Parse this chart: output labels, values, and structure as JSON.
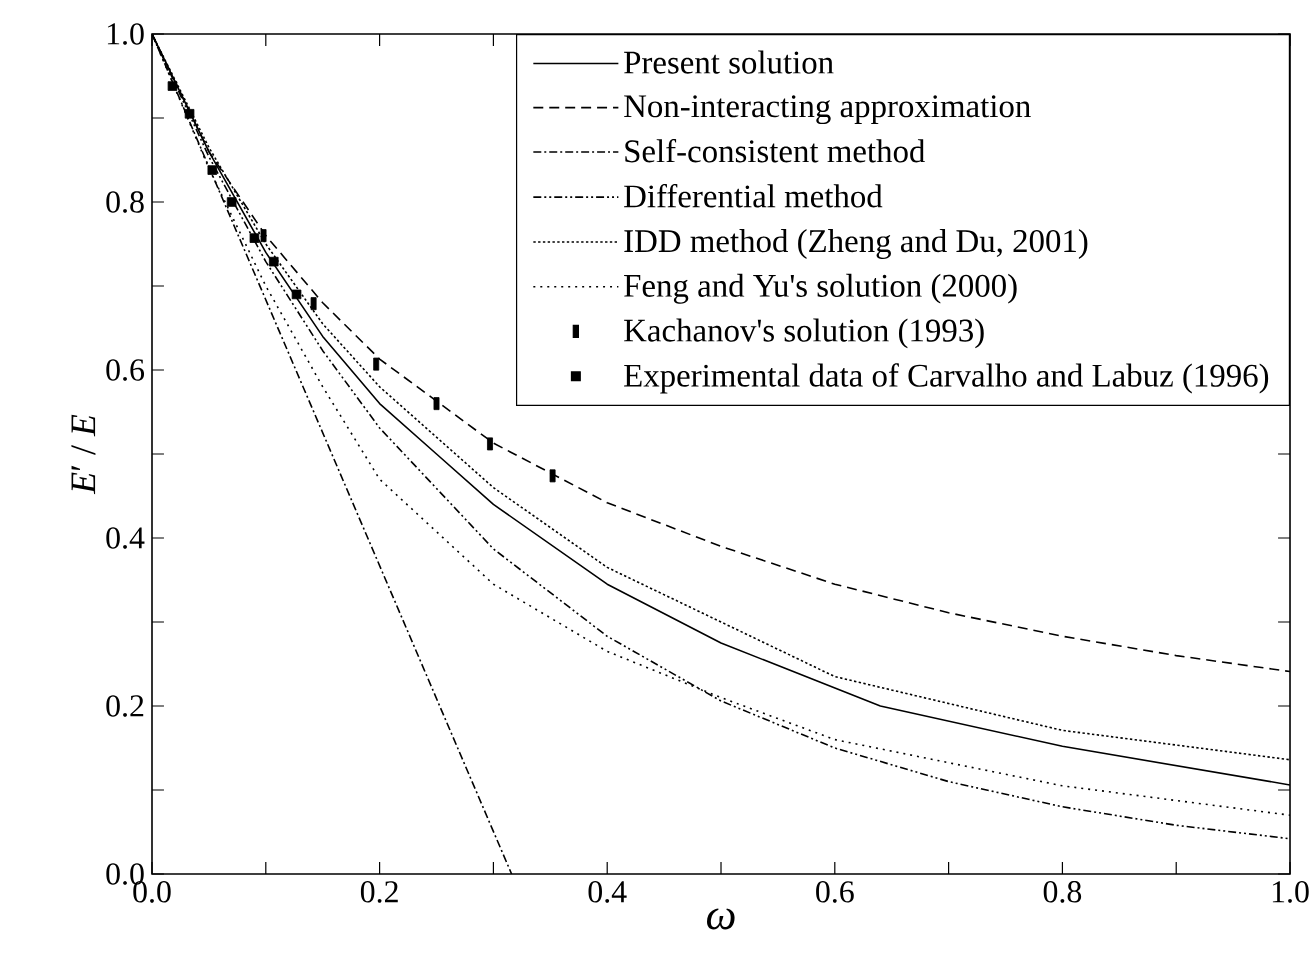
{
  "chart_data": {
    "type": "line",
    "xlabel": "*ω*",
    "ylabel": "*E*′ / *E*",
    "xlim": [
      0,
      1
    ],
    "ylim": [
      0,
      1
    ],
    "xticks": [
      {
        "value": 0,
        "label": "0.0"
      },
      {
        "value": 0.1,
        "label": null
      },
      {
        "value": 0.2,
        "label": "0.2"
      },
      {
        "value": 0.3,
        "label": null
      },
      {
        "value": 0.4,
        "label": "0.4"
      },
      {
        "value": 0.5,
        "label": null
      },
      {
        "value": 0.6,
        "label": "0.6"
      },
      {
        "value": 0.7,
        "label": null
      },
      {
        "value": 0.8,
        "label": "0.8"
      },
      {
        "value": 0.9,
        "label": null
      },
      {
        "value": 1,
        "label": "1.0"
      }
    ],
    "yticks": [
      {
        "value": 0,
        "label": "0.0"
      },
      {
        "value": 0.1,
        "label": null
      },
      {
        "value": 0.2,
        "label": "0.2"
      },
      {
        "value": 0.3,
        "label": null
      },
      {
        "value": 0.4,
        "label": "0.4"
      },
      {
        "value": 0.5,
        "label": null
      },
      {
        "value": 0.6,
        "label": "0.6"
      },
      {
        "value": 0.7,
        "label": null
      },
      {
        "value": 0.8,
        "label": "0.8"
      },
      {
        "value": 0.9,
        "label": null
      },
      {
        "value": 1,
        "label": "1.0"
      }
    ],
    "legend": "top right",
    "grid": false,
    "series": [
      {
        "name": "Present solution",
        "color": "#000000",
        "line_style": "solid",
        "x": [
          0,
          0.05,
          0.1,
          0.15,
          0.2,
          0.25,
          0.3,
          0.4,
          0.5,
          0.64,
          0.8,
          1
        ],
        "values": [
          1,
          0.86,
          0.74,
          0.64,
          0.56,
          0.5,
          0.44,
          0.345,
          0.275,
          0.2,
          0.152,
          0.106
        ]
      },
      {
        "name": "Non-interacting approximation",
        "color": "#000000",
        "line_style": "dashed",
        "x": [
          0,
          0.05,
          0.1,
          0.15,
          0.2,
          0.3,
          0.4,
          0.5,
          0.6,
          0.7,
          0.8,
          0.9,
          1
        ],
        "values": [
          1,
          0.86,
          0.76,
          0.68,
          0.613,
          0.513,
          0.442,
          0.39,
          0.345,
          0.311,
          0.283,
          0.26,
          0.241
        ]
      },
      {
        "name": "Self-consistent method",
        "color": "#000000",
        "line_style": "dashdot",
        "x": [
          0,
          0.316
        ],
        "values": [
          1,
          0
        ]
      },
      {
        "name": "Differential method",
        "color": "#000000",
        "line_style": "dashdotdot",
        "x": [
          0,
          0.05,
          0.1,
          0.15,
          0.2,
          0.3,
          0.4,
          0.5,
          0.6,
          0.7,
          0.8,
          0.9,
          1
        ],
        "values": [
          1,
          0.854,
          0.729,
          0.623,
          0.531,
          0.387,
          0.283,
          0.206,
          0.15,
          0.11,
          0.08,
          0.058,
          0.042
        ]
      },
      {
        "name": "IDD method (Zheng and Du, 2001)",
        "color": "#000000",
        "line_style": "densely dotted",
        "x": [
          0,
          0.05,
          0.1,
          0.15,
          0.2,
          0.3,
          0.4,
          0.5,
          0.6,
          0.8,
          1
        ],
        "values": [
          1,
          0.865,
          0.75,
          0.655,
          0.58,
          0.46,
          0.365,
          0.3,
          0.235,
          0.171,
          0.136
        ]
      },
      {
        "name": "Feng and Yu's solution (2000)",
        "color": "#000000",
        "line_style": "dotted",
        "x": [
          0,
          0.05,
          0.1,
          0.15,
          0.2,
          0.3,
          0.4,
          0.5,
          0.6,
          0.8,
          1
        ],
        "values": [
          1,
          0.84,
          0.7,
          0.58,
          0.47,
          0.345,
          0.265,
          0.21,
          0.16,
          0.105,
          0.07
        ]
      },
      {
        "name": "Kachanov's solution (1993)",
        "type": "scatter",
        "color": "#000000",
        "x": [
          0.098,
          0.142,
          0.197,
          0.25,
          0.297,
          0.352
        ],
        "values": [
          0.76,
          0.679,
          0.607,
          0.56,
          0.512,
          0.474
        ]
      },
      {
        "name": "Experimental data of Carvalho and Labuz (1996)",
        "type": "scatter",
        "marker": "square",
        "color": "#000000",
        "x": [
          0.018,
          0.033,
          0.053,
          0.07,
          0.09,
          0.107,
          0.127
        ],
        "values": [
          0.938,
          0.905,
          0.838,
          0.8,
          0.757,
          0.729,
          0.69
        ]
      }
    ]
  }
}
